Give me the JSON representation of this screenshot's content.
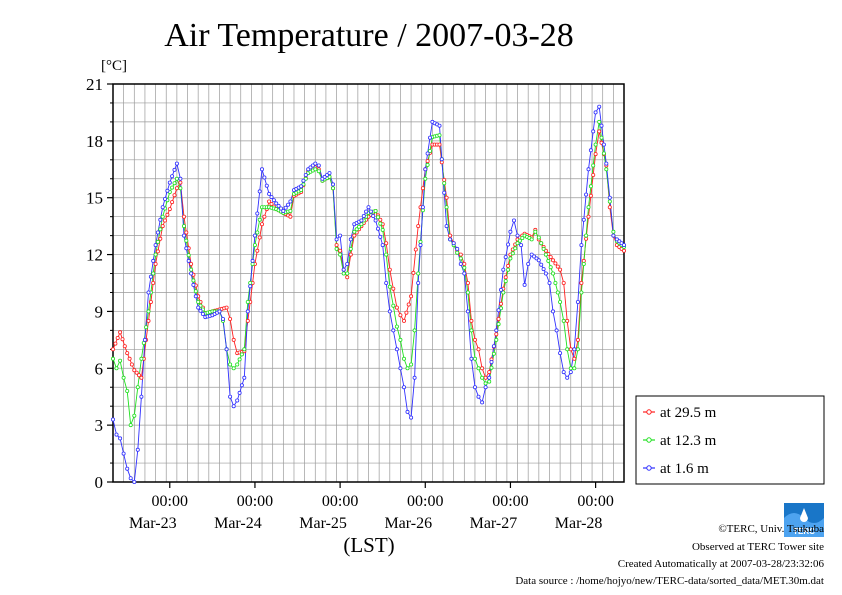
{
  "chart_data": {
    "type": "line",
    "title": "Air Temperature / 2007-03-28",
    "ylabel": "[°C]",
    "xlabel": "(LST)",
    "ylim": [
      0,
      21
    ],
    "y_ticks": [
      0,
      3,
      6,
      9,
      12,
      15,
      18,
      21
    ],
    "x_range_hours": [
      0,
      144
    ],
    "x_ticks": [
      {
        "time": "00:00",
        "date": "Mar-23"
      },
      {
        "time": "00:00",
        "date": "Mar-24"
      },
      {
        "time": "00:00",
        "date": "Mar-25"
      },
      {
        "time": "00:00",
        "date": "Mar-26"
      },
      {
        "time": "00:00",
        "date": "Mar-27"
      },
      {
        "time": "00:00",
        "date": "Mar-28"
      }
    ],
    "grid": true,
    "legend_position": "right",
    "series": [
      {
        "name": "at 29.5 m",
        "color": "#ff2020",
        "points": [
          [
            0,
            7.0
          ],
          [
            2,
            7.9
          ],
          [
            4,
            6.8
          ],
          [
            6,
            5.9
          ],
          [
            8,
            5.5
          ],
          [
            10,
            8.5
          ],
          [
            12,
            11.5
          ],
          [
            14,
            13.5
          ],
          [
            16,
            14.4
          ],
          [
            18,
            15.5
          ],
          [
            19,
            15.8
          ],
          [
            20,
            14.0
          ],
          [
            22,
            11.5
          ],
          [
            24,
            9.8
          ],
          [
            26,
            8.9
          ],
          [
            28,
            9.0
          ],
          [
            30,
            9.1
          ],
          [
            32,
            9.2
          ],
          [
            33,
            8.6
          ],
          [
            34,
            7.5
          ],
          [
            35,
            6.8
          ],
          [
            37,
            6.9
          ],
          [
            38,
            8.5
          ],
          [
            40,
            11.5
          ],
          [
            42,
            13.6
          ],
          [
            44,
            14.8
          ],
          [
            46,
            14.4
          ],
          [
            48,
            14.2
          ],
          [
            50,
            14.0
          ],
          [
            51,
            15.1
          ],
          [
            53,
            15.3
          ],
          [
            55,
            16.4
          ],
          [
            57,
            16.6
          ],
          [
            58,
            16.5
          ],
          [
            59,
            15.9
          ],
          [
            61,
            16.1
          ],
          [
            62,
            15.5
          ],
          [
            63,
            12.5
          ],
          [
            64,
            12.2
          ],
          [
            65,
            11.2
          ],
          [
            66,
            10.8
          ],
          [
            67,
            12.0
          ],
          [
            68,
            13.0
          ],
          [
            70,
            13.5
          ],
          [
            72,
            14.0
          ],
          [
            74,
            14.3
          ],
          [
            76,
            13.6
          ],
          [
            77,
            12.6
          ],
          [
            78,
            11.2
          ],
          [
            79,
            10.2
          ],
          [
            80,
            9.2
          ],
          [
            81,
            8.8
          ],
          [
            82,
            8.5
          ],
          [
            84,
            9.8
          ],
          [
            86,
            13.5
          ],
          [
            88,
            16.5
          ],
          [
            90,
            17.8
          ],
          [
            92,
            17.8
          ],
          [
            94,
            15.0
          ],
          [
            95,
            13.0
          ],
          [
            96,
            12.6
          ],
          [
            97,
            12.2
          ],
          [
            98,
            12.0
          ],
          [
            99,
            11.5
          ],
          [
            100,
            10.5
          ],
          [
            101,
            8.5
          ],
          [
            102,
            7.5
          ],
          [
            103,
            7.0
          ],
          [
            104,
            6.0
          ],
          [
            105,
            5.5
          ],
          [
            106,
            5.8
          ],
          [
            108,
            7.8
          ],
          [
            110,
            10.2
          ],
          [
            112,
            12.0
          ],
          [
            114,
            12.8
          ],
          [
            116,
            13.1
          ],
          [
            118,
            12.9
          ],
          [
            119,
            13.3
          ],
          [
            120,
            12.8
          ],
          [
            122,
            12.2
          ],
          [
            124,
            11.7
          ],
          [
            126,
            11.2
          ],
          [
            127,
            10.5
          ],
          [
            128,
            8.5
          ],
          [
            129,
            7.0
          ],
          [
            130,
            6.5
          ],
          [
            131,
            7.5
          ],
          [
            132,
            10.5
          ],
          [
            134,
            14.0
          ],
          [
            136,
            17.3
          ],
          [
            137,
            18.5
          ],
          [
            139,
            16.7
          ],
          [
            140,
            14.5
          ],
          [
            141,
            13.0
          ],
          [
            142,
            12.5
          ],
          [
            144,
            12.2
          ]
        ]
      },
      {
        "name": "at 12.3 m",
        "color": "#20e020",
        "points": [
          [
            0,
            6.5
          ],
          [
            1,
            6.0
          ],
          [
            2,
            6.4
          ],
          [
            3,
            5.5
          ],
          [
            4,
            4.8
          ],
          [
            5,
            3.0
          ],
          [
            6,
            3.5
          ],
          [
            7,
            5.0
          ],
          [
            8,
            6.5
          ],
          [
            10,
            9.0
          ],
          [
            12,
            12.0
          ],
          [
            14,
            14.0
          ],
          [
            16,
            15.3
          ],
          [
            18,
            16.0
          ],
          [
            19,
            15.5
          ],
          [
            20,
            13.5
          ],
          [
            22,
            11.2
          ],
          [
            24,
            9.5
          ],
          [
            26,
            8.9
          ],
          [
            28,
            9.0
          ],
          [
            30,
            9.0
          ],
          [
            31,
            8.5
          ],
          [
            32,
            7.0
          ],
          [
            33,
            6.2
          ],
          [
            34,
            6.0
          ],
          [
            35,
            6.2
          ],
          [
            37,
            7.0
          ],
          [
            38,
            9.5
          ],
          [
            40,
            12.5
          ],
          [
            42,
            14.5
          ],
          [
            44,
            14.5
          ],
          [
            46,
            14.4
          ],
          [
            48,
            14.2
          ],
          [
            50,
            14.3
          ],
          [
            51,
            15.2
          ],
          [
            53,
            15.4
          ],
          [
            55,
            16.3
          ],
          [
            57,
            16.5
          ],
          [
            58,
            16.4
          ],
          [
            59,
            15.9
          ],
          [
            61,
            16.1
          ],
          [
            62,
            15.5
          ],
          [
            63,
            12.3
          ],
          [
            64,
            12.0
          ],
          [
            65,
            11.0
          ],
          [
            66,
            11.0
          ],
          [
            67,
            12.3
          ],
          [
            68,
            13.2
          ],
          [
            70,
            13.6
          ],
          [
            72,
            14.2
          ],
          [
            74,
            14.3
          ],
          [
            76,
            13.3
          ],
          [
            77,
            12.0
          ],
          [
            78,
            10.3
          ],
          [
            79,
            9.3
          ],
          [
            80,
            8.2
          ],
          [
            81,
            7.5
          ],
          [
            82,
            6.5
          ],
          [
            83,
            6.0
          ],
          [
            84,
            6.2
          ],
          [
            85,
            8.0
          ],
          [
            86,
            11.0
          ],
          [
            88,
            16.0
          ],
          [
            90,
            18.2
          ],
          [
            92,
            18.3
          ],
          [
            94,
            14.5
          ],
          [
            95,
            12.8
          ],
          [
            96,
            12.5
          ],
          [
            97,
            12.1
          ],
          [
            98,
            11.8
          ],
          [
            99,
            11.3
          ],
          [
            100,
            10.0
          ],
          [
            101,
            8.0
          ],
          [
            102,
            6.5
          ],
          [
            103,
            6.0
          ],
          [
            104,
            5.5
          ],
          [
            105,
            5.2
          ],
          [
            106,
            5.3
          ],
          [
            108,
            7.5
          ],
          [
            110,
            10.0
          ],
          [
            112,
            11.8
          ],
          [
            114,
            12.6
          ],
          [
            116,
            13.0
          ],
          [
            118,
            12.8
          ],
          [
            119,
            13.2
          ],
          [
            120,
            12.9
          ],
          [
            122,
            12.0
          ],
          [
            124,
            11.0
          ],
          [
            126,
            9.5
          ],
          [
            127,
            8.5
          ],
          [
            128,
            7.0
          ],
          [
            129,
            6.0
          ],
          [
            130,
            6.0
          ],
          [
            131,
            7.0
          ],
          [
            132,
            10.0
          ],
          [
            134,
            14.5
          ],
          [
            136,
            17.8
          ],
          [
            137,
            19.0
          ],
          [
            139,
            16.5
          ],
          [
            140,
            14.8
          ],
          [
            141,
            13.2
          ],
          [
            142,
            12.7
          ],
          [
            144,
            12.4
          ]
        ]
      },
      {
        "name": "at 1.6 m",
        "color": "#3030ff",
        "points": [
          [
            0,
            3.3
          ],
          [
            1,
            2.5
          ],
          [
            2,
            2.3
          ],
          [
            3,
            1.5
          ],
          [
            4,
            0.7
          ],
          [
            5,
            0.2
          ],
          [
            6,
            0.0
          ],
          [
            7,
            1.7
          ],
          [
            8,
            4.5
          ],
          [
            9,
            7.5
          ],
          [
            10,
            10.0
          ],
          [
            12,
            12.5
          ],
          [
            14,
            14.5
          ],
          [
            16,
            15.8
          ],
          [
            18,
            16.8
          ],
          [
            19,
            16.0
          ],
          [
            20,
            13.0
          ],
          [
            22,
            11.0
          ],
          [
            24,
            9.2
          ],
          [
            26,
            8.7
          ],
          [
            28,
            8.8
          ],
          [
            30,
            9.0
          ],
          [
            31,
            8.6
          ],
          [
            32,
            7.0
          ],
          [
            33,
            4.5
          ],
          [
            34,
            4.0
          ],
          [
            35,
            4.3
          ],
          [
            37,
            5.5
          ],
          [
            38,
            9.0
          ],
          [
            40,
            13.0
          ],
          [
            42,
            16.5
          ],
          [
            44,
            15.2
          ],
          [
            46,
            14.7
          ],
          [
            48,
            14.3
          ],
          [
            50,
            14.8
          ],
          [
            51,
            15.4
          ],
          [
            53,
            15.6
          ],
          [
            55,
            16.5
          ],
          [
            57,
            16.8
          ],
          [
            58,
            16.7
          ],
          [
            59,
            16.0
          ],
          [
            61,
            16.3
          ],
          [
            62,
            15.7
          ],
          [
            63,
            12.8
          ],
          [
            64,
            13.0
          ],
          [
            65,
            11.2
          ],
          [
            66,
            11.5
          ],
          [
            67,
            12.8
          ],
          [
            68,
            13.6
          ],
          [
            70,
            13.8
          ],
          [
            72,
            14.5
          ],
          [
            74,
            13.8
          ],
          [
            76,
            12.5
          ],
          [
            77,
            10.5
          ],
          [
            78,
            9.0
          ],
          [
            79,
            8.0
          ],
          [
            80,
            7.0
          ],
          [
            81,
            6.0
          ],
          [
            82,
            5.0
          ],
          [
            83,
            3.7
          ],
          [
            84,
            3.4
          ],
          [
            85,
            5.5
          ],
          [
            86,
            10.5
          ],
          [
            88,
            16.5
          ],
          [
            90,
            19.0
          ],
          [
            92,
            18.8
          ],
          [
            94,
            13.5
          ],
          [
            95,
            12.8
          ],
          [
            96,
            12.6
          ],
          [
            97,
            12.3
          ],
          [
            98,
            11.5
          ],
          [
            99,
            11.0
          ],
          [
            100,
            9.0
          ],
          [
            101,
            6.5
          ],
          [
            102,
            5.0
          ],
          [
            103,
            4.5
          ],
          [
            104,
            4.2
          ],
          [
            105,
            5.0
          ],
          [
            106,
            5.5
          ],
          [
            108,
            8.0
          ],
          [
            110,
            11.2
          ],
          [
            112,
            13.2
          ],
          [
            113,
            13.8
          ],
          [
            114,
            13.0
          ],
          [
            115,
            12.5
          ],
          [
            116,
            10.4
          ],
          [
            117,
            11.5
          ],
          [
            118,
            12.0
          ],
          [
            120,
            11.7
          ],
          [
            122,
            11.0
          ],
          [
            123,
            10.5
          ],
          [
            124,
            9.0
          ],
          [
            125,
            8.0
          ],
          [
            126,
            6.8
          ],
          [
            127,
            5.8
          ],
          [
            128,
            5.5
          ],
          [
            129,
            5.8
          ],
          [
            130,
            7.0
          ],
          [
            131,
            9.5
          ],
          [
            132,
            12.5
          ],
          [
            134,
            16.5
          ],
          [
            136,
            19.5
          ],
          [
            137,
            19.8
          ],
          [
            139,
            16.8
          ],
          [
            140,
            15.0
          ],
          [
            141,
            13.0
          ],
          [
            142,
            12.8
          ],
          [
            144,
            12.5
          ]
        ]
      }
    ]
  },
  "footer": {
    "copyright": "©TERC, Univ. Tsukuba",
    "observed": "Observed at TERC Tower site",
    "created": "Created Automatically at 2007-03-28/23:32:06",
    "source": "Data source : /home/hojyo/new/TERC-data/sorted_data/MET.30m.dat",
    "logo_text": "TERC"
  }
}
